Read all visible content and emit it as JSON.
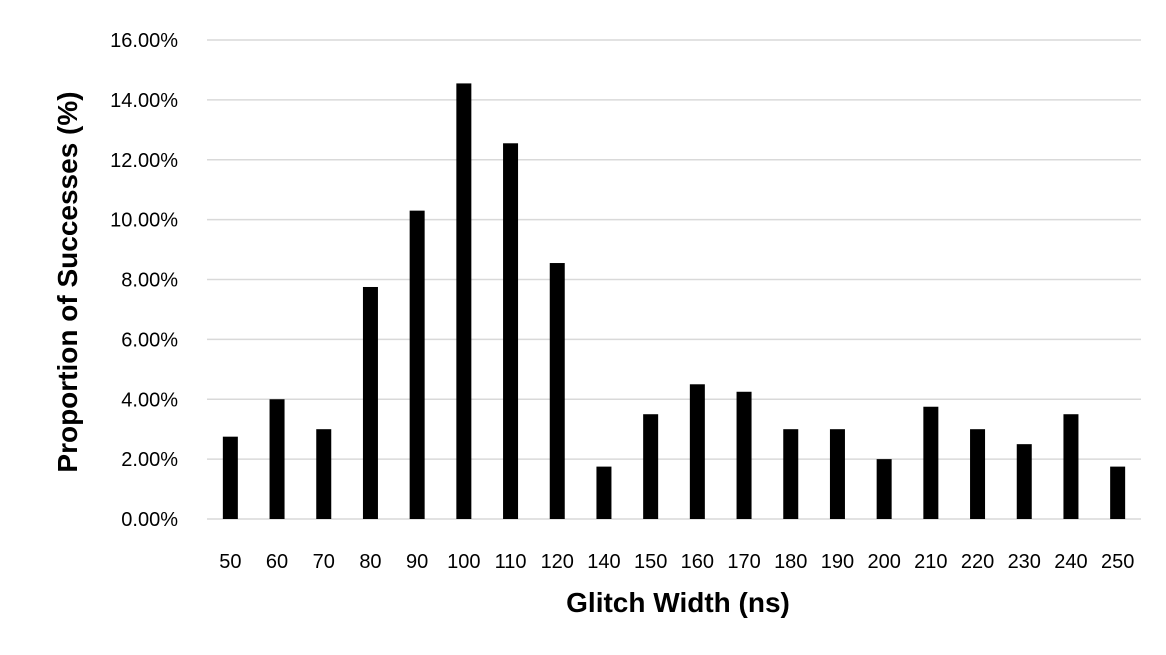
{
  "chart_data": {
    "type": "bar",
    "xlabel": "Glitch Width (ns)",
    "ylabel": "Proportion of Successes (%)",
    "categories": [
      "50",
      "60",
      "70",
      "80",
      "90",
      "100",
      "110",
      "120",
      "140",
      "150",
      "160",
      "170",
      "180",
      "190",
      "200",
      "210",
      "220",
      "230",
      "240",
      "250"
    ],
    "values": [
      2.75,
      4.0,
      3.0,
      7.75,
      10.3,
      14.55,
      12.55,
      8.55,
      1.75,
      3.5,
      4.5,
      4.25,
      3.0,
      3.0,
      2.0,
      3.75,
      3.0,
      2.5,
      3.5,
      1.75
    ],
    "y_ticks": [
      "0.00%",
      "2.00%",
      "4.00%",
      "6.00%",
      "8.00%",
      "10.00%",
      "12.00%",
      "14.00%",
      "16.00%"
    ],
    "ylim": [
      0,
      16
    ],
    "grid": "horizontal",
    "legend": "none",
    "colors": {
      "bar": "#000000",
      "grid": "#d9d9d9"
    }
  }
}
